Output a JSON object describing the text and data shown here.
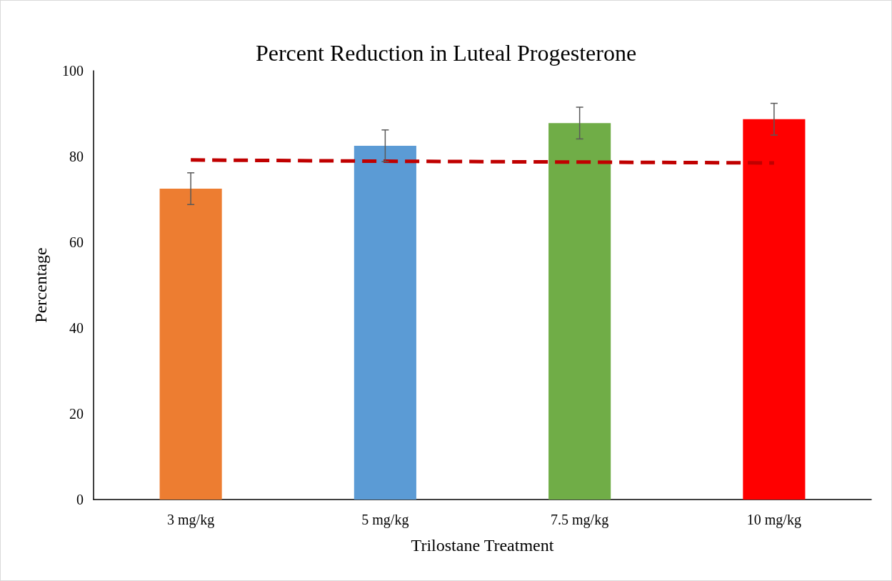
{
  "chart_data": {
    "type": "bar",
    "title": "Percent Reduction in Luteal Progesterone",
    "xlabel": "Trilostane Treatment",
    "ylabel": "Percentage",
    "categories": [
      "3 mg/kg",
      "5 mg/kg",
      "7.5 mg/kg",
      "10 mg/kg"
    ],
    "values": [
      72.5,
      82.5,
      87.8,
      88.7
    ],
    "colors": [
      "#ed7d31",
      "#5b9bd5",
      "#70ad47",
      "#ff0000"
    ],
    "errors": [
      3.7,
      3.7,
      3.7,
      3.7
    ],
    "series": [
      {
        "type": "line",
        "color": "#c00000",
        "line_style": "dashed",
        "marker": "none",
        "values": [
          79.2,
          78.9,
          78.7,
          78.5
        ]
      }
    ],
    "ylim": [
      0,
      100
    ],
    "yticks": [
      0,
      20,
      40,
      60,
      80,
      100
    ],
    "grid": false
  }
}
